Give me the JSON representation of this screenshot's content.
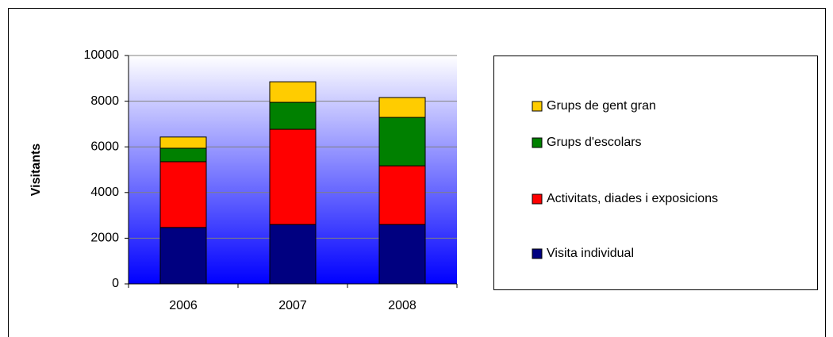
{
  "chart_data": {
    "type": "bar",
    "stacked": true,
    "y_label": "Visitants",
    "categories": [
      "2006",
      "2007",
      "2008"
    ],
    "series": [
      {
        "name": "Visita individual",
        "color": "#000080",
        "values": [
          2470,
          2600,
          2600
        ]
      },
      {
        "name": "Activitats, diades i exposicions",
        "color": "#ff0000",
        "values": [
          2880,
          4170,
          2570
        ]
      },
      {
        "name": "Grups d'escolars",
        "color": "#008000",
        "values": [
          590,
          1180,
          2120
        ]
      },
      {
        "name": "Grups de gent gran",
        "color": "#ffcc00",
        "values": [
          490,
          900,
          870
        ]
      }
    ],
    "ylim": [
      0,
      10000
    ],
    "yticks": [
      0,
      2000,
      4000,
      6000,
      8000,
      10000
    ],
    "grid": true,
    "legend": "right"
  }
}
